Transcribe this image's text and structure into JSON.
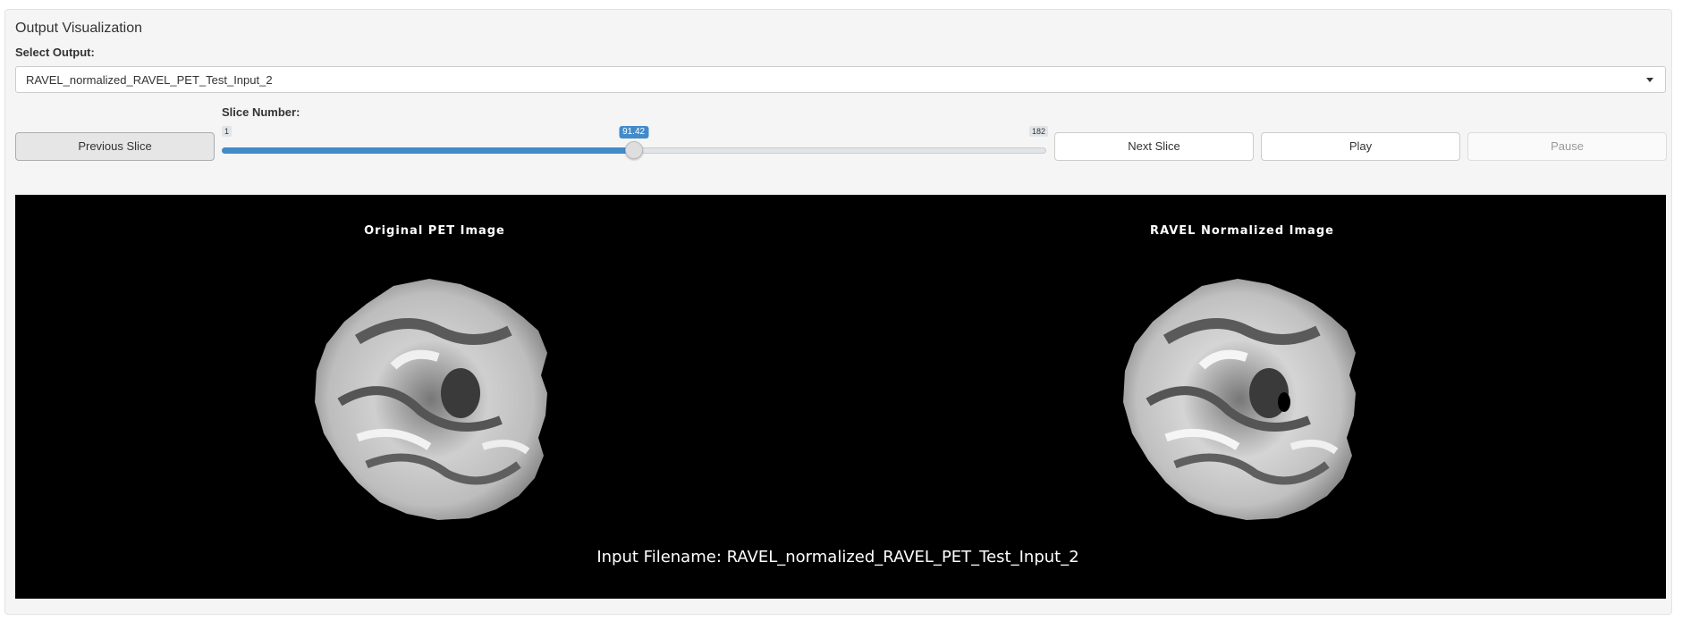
{
  "panel": {
    "title": "Output Visualization"
  },
  "select": {
    "label": "Select Output:",
    "value": "RAVEL_normalized_RAVEL_PET_Test_Input_2"
  },
  "buttons": {
    "previous": "Previous Slice",
    "next": "Next Slice",
    "play": "Play",
    "pause": "Pause"
  },
  "slider": {
    "label": "Slice Number:",
    "min": 1,
    "max": 182,
    "value": 91.42,
    "min_label": "1",
    "max_label": "182",
    "value_label": "91.42"
  },
  "viewer": {
    "left_title": "Original PET Image",
    "right_title": "RAVEL Normalized Image",
    "caption": "Input Filename: RAVEL_normalized_RAVEL_PET_Test_Input_2"
  },
  "colors": {
    "accent": "#428bca",
    "viewer_bg": "#000000"
  }
}
